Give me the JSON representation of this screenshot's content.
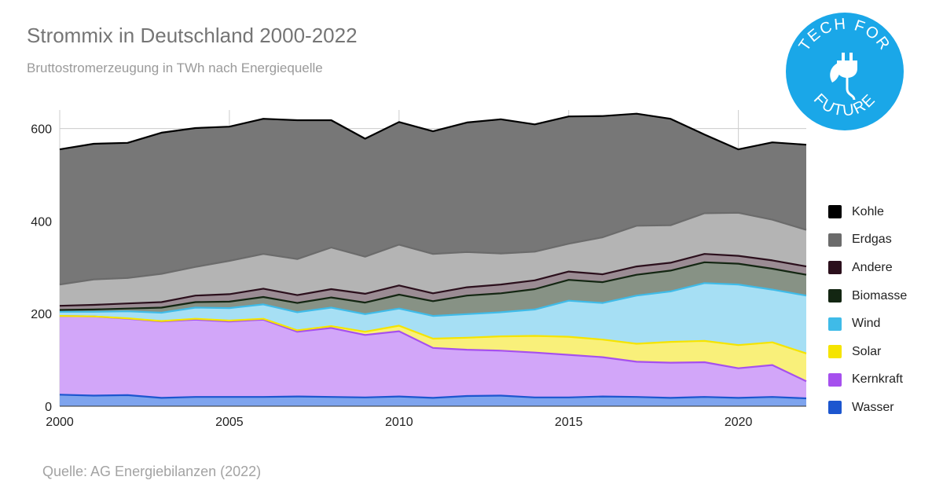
{
  "title": "Strommix in Deutschland 2000-2022",
  "subtitle": "Bruttostromerzeugung in TWh nach Energiequelle",
  "source": "Quelle: AG Energiebilanzen (2022)",
  "logo": {
    "text_top": "TECH FOR",
    "text_bottom": "FUTURE",
    "color": "#1aa7e8",
    "icon": "plug-leaf-icon"
  },
  "legend": [
    {
      "name": "Kohle",
      "color": "#000000"
    },
    {
      "name": "Erdgas",
      "color": "#6b6b6b"
    },
    {
      "name": "Andere",
      "color": "#2b0f1c"
    },
    {
      "name": "Biomasse",
      "color": "#132612"
    },
    {
      "name": "Wind",
      "color": "#3fbbe8"
    },
    {
      "name": "Solar",
      "color": "#f5e400"
    },
    {
      "name": "Kernkraft",
      "color": "#a650ee"
    },
    {
      "name": "Wasser",
      "color": "#1c56cf"
    }
  ],
  "chart_data": {
    "type": "area",
    "stacked": true,
    "title": "Strommix in Deutschland 2000-2022",
    "subtitle": "Bruttostromerzeugung in TWh nach Energiequelle",
    "x": [
      2000,
      2001,
      2002,
      2003,
      2004,
      2005,
      2006,
      2007,
      2008,
      2009,
      2010,
      2011,
      2012,
      2013,
      2014,
      2015,
      2016,
      2017,
      2018,
      2019,
      2020,
      2021,
      2022
    ],
    "xticks": [
      2000,
      2005,
      2010,
      2015,
      2020
    ],
    "yticks": [
      0,
      200,
      400,
      600
    ],
    "ylim": [
      0,
      640
    ],
    "grid": true,
    "legend_position": "right",
    "series": [
      {
        "name": "Wasser",
        "color": "#1c56cf",
        "fill": "#7ea4ee",
        "values": [
          25,
          23,
          24,
          18,
          20,
          20,
          20,
          21,
          20,
          19,
          21,
          18,
          22,
          23,
          19,
          19,
          21,
          20,
          18,
          20,
          18,
          20,
          17
        ]
      },
      {
        "name": "Kernkraft",
        "color": "#a650ee",
        "fill": "#d2a6f9",
        "values": [
          170,
          171,
          165,
          165,
          167,
          163,
          167,
          140,
          149,
          135,
          141,
          108,
          100,
          97,
          97,
          92,
          85,
          76,
          76,
          75,
          64,
          69,
          37
        ]
      },
      {
        "name": "Solar",
        "color": "#f5e400",
        "fill": "#f9f07a",
        "values": [
          0,
          0,
          1,
          1,
          2,
          2,
          2,
          3,
          4,
          7,
          12,
          20,
          26,
          31,
          36,
          39,
          38,
          39,
          45,
          46,
          50,
          49,
          60
        ]
      },
      {
        "name": "Wind",
        "color": "#3fbbe8",
        "fill": "#a6dff4",
        "values": [
          9,
          10,
          15,
          18,
          24,
          27,
          31,
          39,
          40,
          38,
          37,
          49,
          51,
          52,
          57,
          78,
          79,
          104,
          109,
          125,
          131,
          114,
          125
        ]
      },
      {
        "name": "Biomasse",
        "color": "#132612",
        "fill": "#879285",
        "values": [
          4,
          5,
          6,
          11,
          12,
          14,
          16,
          20,
          22,
          25,
          30,
          32,
          40,
          41,
          44,
          45,
          45,
          45,
          45,
          45,
          45,
          45,
          45
        ]
      },
      {
        "name": "Andere",
        "color": "#2b0f1c",
        "fill": "#9b8c94",
        "values": [
          9,
          10,
          11,
          12,
          14,
          16,
          18,
          17,
          18,
          19,
          20,
          17,
          18,
          19,
          19,
          18,
          17,
          18,
          17,
          18,
          17,
          18,
          18
        ]
      },
      {
        "name": "Erdgas",
        "color": "#6b6b6b",
        "fill": "#b4b4b4",
        "values": [
          46,
          55,
          55,
          61,
          62,
          72,
          75,
          78,
          90,
          80,
          88,
          85,
          76,
          67,
          62,
          60,
          80,
          88,
          81,
          88,
          93,
          88,
          79
        ]
      },
      {
        "name": "Kohle",
        "color": "#000000",
        "fill": "#777777",
        "values": [
          292,
          293,
          292,
          305,
          300,
          290,
          292,
          300,
          275,
          255,
          265,
          265,
          280,
          290,
          275,
          275,
          262,
          242,
          230,
          170,
          137,
          167,
          184
        ]
      }
    ]
  }
}
